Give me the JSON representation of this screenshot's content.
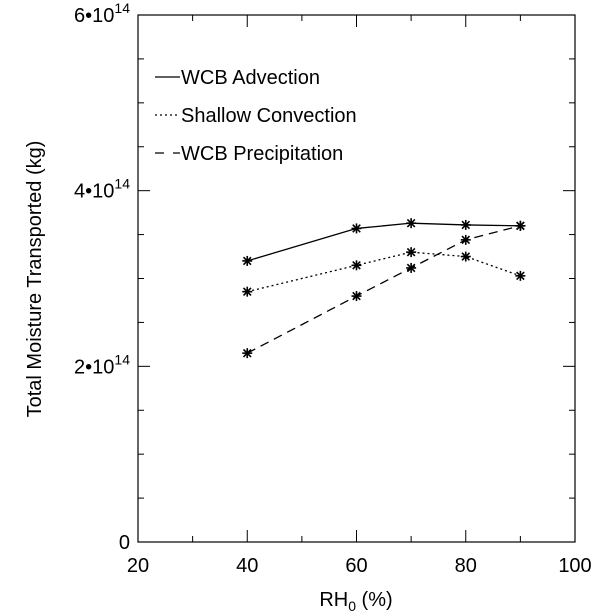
{
  "chart_data": {
    "type": "line",
    "xlabel": "RH",
    "xlabel_sub": "0",
    "xlabel_unit": " (%)",
    "ylabel": "Total Moisture Transported (kg)",
    "xlim": [
      20,
      100
    ],
    "ylim": [
      0,
      600000000000000.0
    ],
    "xticks": [
      20,
      40,
      60,
      80,
      100
    ],
    "xtick_labels": [
      "20",
      "40",
      "60",
      "80",
      "100"
    ],
    "yticks": [
      0,
      200000000000000.0,
      400000000000000.0,
      600000000000000.0
    ],
    "ytick_labels": [
      {
        "mant": "0",
        "exp": ""
      },
      {
        "mant": "2•10",
        "exp": "14"
      },
      {
        "mant": "4•10",
        "exp": "14"
      },
      {
        "mant": "6•10",
        "exp": "14"
      }
    ],
    "legend_position": "top-left",
    "x": [
      40,
      60,
      70,
      80,
      90
    ],
    "series": [
      {
        "name": "WCB Advection",
        "dash": "solid",
        "values": [
          320000000000000.0,
          357000000000000.0,
          363000000000000.0,
          361000000000000.0,
          360000000000000.0
        ]
      },
      {
        "name": "Shallow Convection",
        "dash": "dotted",
        "values": [
          285000000000000.0,
          315000000000000.0,
          330000000000000.0,
          325000000000000.0,
          303000000000000.0
        ]
      },
      {
        "name": "WCB Precipitation",
        "dash": "dashed",
        "values": [
          215000000000000.0,
          280000000000000.0,
          312000000000000.0,
          344000000000000.0,
          360000000000000.0
        ]
      }
    ]
  }
}
